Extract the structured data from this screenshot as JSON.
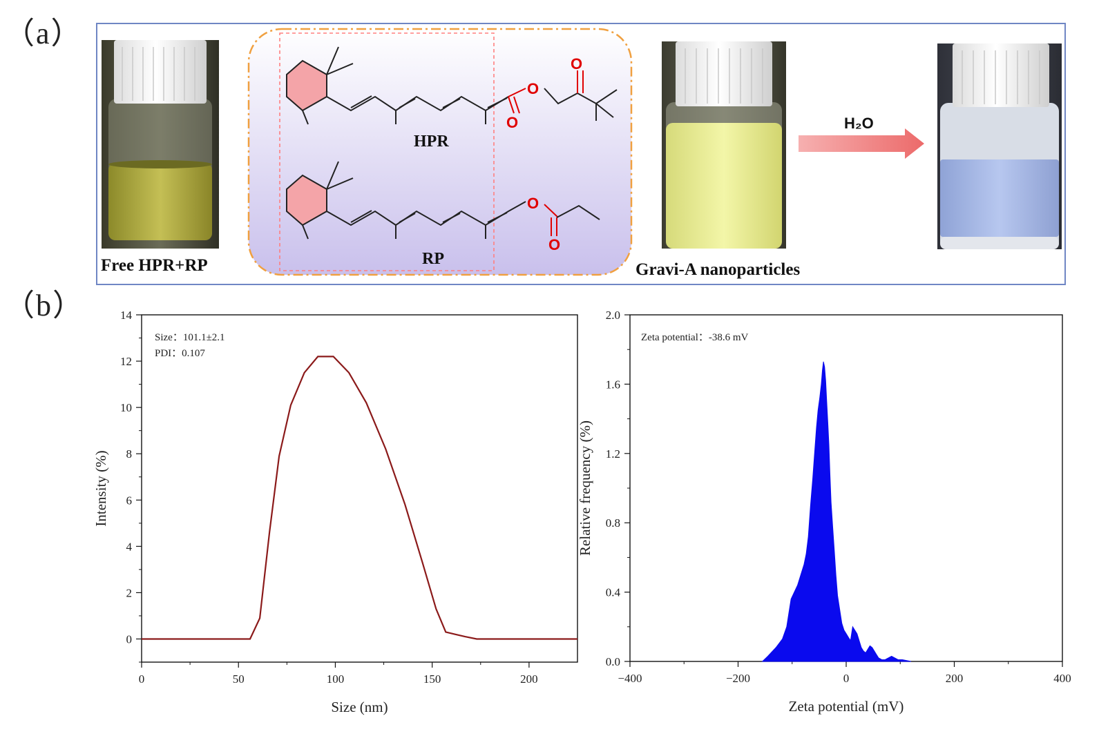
{
  "panel_a": {
    "label": "（a）",
    "vial1_caption": "Free HPR+RP",
    "vial2_caption": "Gravi-A nanoparticles",
    "arrow_label": "H₂O",
    "structure_hpr_label": "HPR",
    "structure_rp_label": "RP",
    "oxygen_symbol": "O",
    "colors": {
      "frame": "#6f86c4",
      "oxygen": "#e00000",
      "ring_fill": "#f4a4a8",
      "box_border": "#f0a040",
      "dashed_box": "#ff7f7f",
      "arrow": "#f08080",
      "vial1_liquid": "#b8b040",
      "vial2_liquid": "#eef29a",
      "vial3_liquid": "#a9bcea"
    }
  },
  "panel_b": {
    "label": "（b）"
  },
  "chart_data": [
    {
      "type": "line",
      "xlabel": "Size (nm)",
      "ylabel": "Intensity (%)",
      "xlim": [
        0,
        225
      ],
      "ylim": [
        -1,
        14
      ],
      "xticks": [
        "0",
        "50",
        "100",
        "150",
        "200"
      ],
      "yticks": [
        "0",
        "2",
        "4",
        "6",
        "8",
        "10",
        "12",
        "14"
      ],
      "annotation_line1": "Size：101.1±2.1",
      "annotation_line2": "PDI：0.107",
      "color": "#8b1a1a",
      "x": [
        0,
        56,
        61,
        66,
        71,
        77,
        84,
        91,
        99,
        107,
        116,
        126,
        136,
        145,
        152,
        157,
        162,
        167,
        173,
        200,
        225
      ],
      "y": [
        0,
        0,
        0.9,
        4.6,
        7.9,
        10.1,
        11.5,
        12.2,
        12.2,
        11.5,
        10.2,
        8.2,
        5.8,
        3.3,
        1.3,
        0.3,
        0.2,
        0.1,
        0,
        0,
        0
      ]
    },
    {
      "type": "area",
      "xlabel": "Zeta potential (mV)",
      "ylabel": "Relative frequency (%)",
      "xlim": [
        -400,
        400
      ],
      "ylim": [
        0,
        2.0
      ],
      "xticks": [
        "−400",
        "−200",
        "0",
        "200",
        "400"
      ],
      "yticks": [
        "0.0",
        "0.4",
        "0.8",
        "1.2",
        "1.6",
        "2.0"
      ],
      "annotation": "Zeta potential：-38.6 mV",
      "color": "#0a0aee",
      "x": [
        -155,
        -145,
        -130,
        -118,
        -110,
        -102,
        -96,
        -90,
        -84,
        -78,
        -74,
        -70,
        -66,
        -62,
        -58,
        -55,
        -52,
        -49,
        -46,
        -44,
        -42,
        -40,
        -38,
        -36,
        -34,
        -32,
        -30,
        -28,
        -25,
        -22,
        -19,
        -16,
        -12,
        -8,
        -4,
        0,
        4,
        8,
        12,
        16,
        20,
        24,
        28,
        32,
        36,
        40,
        44,
        48,
        52,
        56,
        60,
        66,
        72,
        78,
        84,
        90,
        96,
        104,
        112,
        120
      ],
      "y": [
        0.0,
        0.03,
        0.08,
        0.13,
        0.2,
        0.36,
        0.4,
        0.44,
        0.5,
        0.56,
        0.62,
        0.72,
        0.9,
        1.05,
        1.22,
        1.35,
        1.45,
        1.52,
        1.6,
        1.68,
        1.73,
        1.7,
        1.62,
        1.5,
        1.38,
        1.25,
        1.08,
        0.92,
        0.78,
        0.64,
        0.5,
        0.38,
        0.3,
        0.22,
        0.18,
        0.16,
        0.14,
        0.12,
        0.2,
        0.18,
        0.16,
        0.12,
        0.08,
        0.06,
        0.05,
        0.07,
        0.09,
        0.08,
        0.06,
        0.04,
        0.02,
        0.01,
        0.01,
        0.02,
        0.03,
        0.02,
        0.01,
        0.01,
        0.005,
        0.0
      ]
    }
  ]
}
